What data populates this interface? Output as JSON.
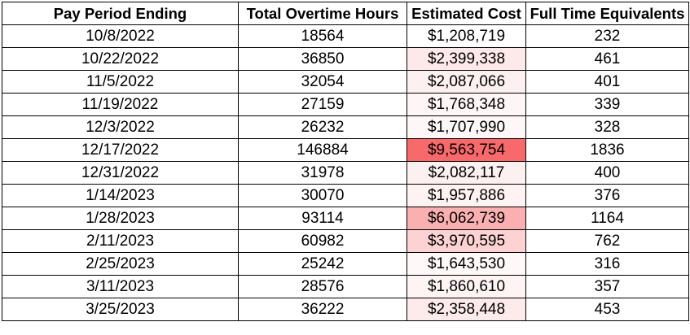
{
  "table": {
    "headers": [
      "Pay Period Ending",
      "Total Overtime Hours",
      "Estimated Cost",
      "Full Time Equivalents"
    ],
    "rows": [
      {
        "date": "10/8/2022",
        "hours": "18564",
        "cost": "$1,208,719",
        "fte": "232",
        "cost_fill": "#ffffff"
      },
      {
        "date": "10/22/2022",
        "hours": "36850",
        "cost": "$2,399,338",
        "fte": "461",
        "cost_fill": "#fde9e9"
      },
      {
        "date": "11/5/2022",
        "hours": "32054",
        "cost": "$2,087,066",
        "fte": "401",
        "cost_fill": "#fdf0f0"
      },
      {
        "date": "11/19/2022",
        "hours": "27159",
        "cost": "$1,768,348",
        "fte": "339",
        "cost_fill": "#fef6f6"
      },
      {
        "date": "12/3/2022",
        "hours": "26232",
        "cost": "$1,707,990",
        "fte": "328",
        "cost_fill": "#fef7f7"
      },
      {
        "date": "12/17/2022",
        "hours": "146884",
        "cost": "$9,563,754",
        "fte": "1836",
        "cost_fill": "#f8696b"
      },
      {
        "date": "12/31/2022",
        "hours": "31978",
        "cost": "$2,082,117",
        "fte": "400",
        "cost_fill": "#fdf0f0"
      },
      {
        "date": "1/14/2023",
        "hours": "30070",
        "cost": "$1,957,886",
        "fte": "376",
        "cost_fill": "#fef2f2"
      },
      {
        "date": "1/28/2023",
        "hours": "93114",
        "cost": "$6,062,739",
        "fte": "1164",
        "cost_fill": "#faafb0"
      },
      {
        "date": "2/11/2023",
        "hours": "60982",
        "cost": "$3,970,595",
        "fte": "762",
        "cost_fill": "#fcd2d2"
      },
      {
        "date": "2/25/2023",
        "hours": "25242",
        "cost": "$1,643,530",
        "fte": "316",
        "cost_fill": "#fef8f8"
      },
      {
        "date": "3/11/2023",
        "hours": "28576",
        "cost": "$1,860,610",
        "fte": "357",
        "cost_fill": "#fef4f4"
      },
      {
        "date": "3/25/2023",
        "hours": "36222",
        "cost": "$2,358,448",
        "fte": "453",
        "cost_fill": "#fdeaea"
      }
    ]
  }
}
